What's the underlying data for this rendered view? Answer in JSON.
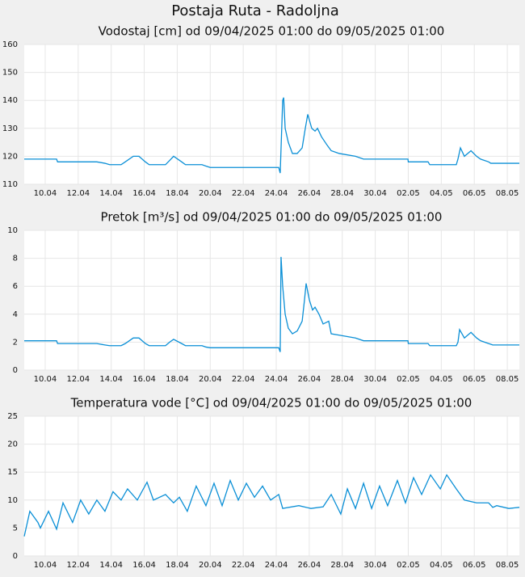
{
  "title": "Postaja Ruta - Radoljna",
  "chart_data": [
    {
      "type": "line",
      "title": "Vodostaj [cm] od 09/04/2025 01:00 do 09/05/2025 01:00",
      "color": "#0a8fd6",
      "grid": true,
      "xlim": [
        8.73,
        38.73
      ],
      "ylim": [
        110,
        160
      ],
      "yticks": [
        110,
        120,
        130,
        140,
        150,
        160
      ],
      "xticks": [
        {
          "value": 10,
          "label": "10.04"
        },
        {
          "value": 12,
          "label": "12.04"
        },
        {
          "value": 14,
          "label": "14.04"
        },
        {
          "value": 16,
          "label": "16.04"
        },
        {
          "value": 18,
          "label": "18.04"
        },
        {
          "value": 20,
          "label": "20.04"
        },
        {
          "value": 22,
          "label": "22.04"
        },
        {
          "value": 24,
          "label": "24.04"
        },
        {
          "value": 26,
          "label": "26.04"
        },
        {
          "value": 28,
          "label": "28.04"
        },
        {
          "value": 30,
          "label": "30.04"
        },
        {
          "value": 32,
          "label": "02.05"
        },
        {
          "value": 34,
          "label": "04.05"
        },
        {
          "value": 36,
          "label": "06.05"
        },
        {
          "value": 38,
          "label": "08.05"
        }
      ],
      "x": [
        8.73,
        10.69,
        10.75,
        13.13,
        13.62,
        13.9,
        14.6,
        14.85,
        15.34,
        15.68,
        16.07,
        16.3,
        17.29,
        17.54,
        17.78,
        18.27,
        18.5,
        19.5,
        19.74,
        20.0,
        24.15,
        24.24,
        24.39,
        24.45,
        24.54,
        24.73,
        24.98,
        25.27,
        25.57,
        25.76,
        25.91,
        26.15,
        26.35,
        26.5,
        26.74,
        27.08,
        27.33,
        27.82,
        28.8,
        29.29,
        31.98,
        32.0,
        33.2,
        33.3,
        34.91,
        35.01,
        35.16,
        35.4,
        35.8,
        36.14,
        36.38,
        36.87,
        37.0,
        38.73
      ],
      "values": [
        119,
        119,
        118,
        118,
        117.5,
        117,
        117,
        118,
        120,
        120,
        118,
        117,
        117,
        118.5,
        120,
        118,
        117,
        117,
        116.5,
        116,
        116,
        114,
        140,
        141,
        130,
        125,
        121,
        121,
        123,
        130,
        135,
        130,
        129,
        130,
        127,
        124,
        122,
        121,
        120,
        119,
        119,
        118,
        118,
        117,
        117,
        119,
        123,
        120,
        122,
        120,
        119,
        118,
        117.5,
        117.5
      ]
    },
    {
      "type": "line",
      "title": "Pretok [m³/s] od 09/04/2025 01:00 do 09/05/2025 01:00",
      "color": "#0a8fd6",
      "grid": true,
      "xlim": [
        8.73,
        38.73
      ],
      "ylim": [
        0,
        10
      ],
      "yticks": [
        0,
        2,
        4,
        6,
        8,
        10
      ],
      "xticks": [
        {
          "value": 10,
          "label": "10.04"
        },
        {
          "value": 12,
          "label": "12.04"
        },
        {
          "value": 14,
          "label": "14.04"
        },
        {
          "value": 16,
          "label": "16.04"
        },
        {
          "value": 18,
          "label": "18.04"
        },
        {
          "value": 20,
          "label": "20.04"
        },
        {
          "value": 22,
          "label": "22.04"
        },
        {
          "value": 24,
          "label": "24.04"
        },
        {
          "value": 26,
          "label": "26.04"
        },
        {
          "value": 28,
          "label": "28.04"
        },
        {
          "value": 30,
          "label": "30.04"
        },
        {
          "value": 32,
          "label": "02.05"
        },
        {
          "value": 34,
          "label": "04.05"
        },
        {
          "value": 36,
          "label": "06.05"
        },
        {
          "value": 38,
          "label": "08.05"
        }
      ],
      "x": [
        8.73,
        10.69,
        10.75,
        13.13,
        13.62,
        13.9,
        14.6,
        14.85,
        15.34,
        15.68,
        16.07,
        16.3,
        17.29,
        17.54,
        17.78,
        18.27,
        18.5,
        19.5,
        19.74,
        20.0,
        24.15,
        24.24,
        24.29,
        24.39,
        24.54,
        24.73,
        24.98,
        25.27,
        25.57,
        25.71,
        25.81,
        26.01,
        26.2,
        26.35,
        26.59,
        26.84,
        27.18,
        27.33,
        27.82,
        28.8,
        29.29,
        31.98,
        32.0,
        33.2,
        33.3,
        34.91,
        35.01,
        35.11,
        35.4,
        35.8,
        36.14,
        36.38,
        36.87,
        37.12,
        38.73
      ],
      "values": [
        2.1,
        2.1,
        1.9,
        1.9,
        1.8,
        1.75,
        1.75,
        1.9,
        2.3,
        2.3,
        1.9,
        1.75,
        1.75,
        2.0,
        2.2,
        1.9,
        1.75,
        1.75,
        1.65,
        1.6,
        1.6,
        1.3,
        8.1,
        6,
        4,
        3,
        2.6,
        2.8,
        3.5,
        5,
        6.2,
        5,
        4.3,
        4.5,
        4,
        3.3,
        3.5,
        2.6,
        2.5,
        2.3,
        2.1,
        2.1,
        1.9,
        1.9,
        1.75,
        1.75,
        2.0,
        2.9,
        2.3,
        2.7,
        2.3,
        2.1,
        1.9,
        1.8,
        1.8
      ]
    },
    {
      "type": "line",
      "title": "Temperatura vode [°C] od 09/04/2025 01:00 do 09/05/2025 01:00",
      "color": "#0a8fd6",
      "grid": true,
      "xlim": [
        8.73,
        38.73
      ],
      "ylim": [
        0,
        25
      ],
      "yticks": [
        0,
        5,
        10,
        15,
        20,
        25
      ],
      "xticks": [
        {
          "value": 10,
          "label": "10.04"
        },
        {
          "value": 12,
          "label": "12.04"
        },
        {
          "value": 14,
          "label": "14.04"
        },
        {
          "value": 16,
          "label": "16.04"
        },
        {
          "value": 18,
          "label": "18.04"
        },
        {
          "value": 20,
          "label": "20.04"
        },
        {
          "value": 22,
          "label": "22.04"
        },
        {
          "value": 24,
          "label": "24.04"
        },
        {
          "value": 26,
          "label": "26.04"
        },
        {
          "value": 28,
          "label": "28.04"
        },
        {
          "value": 30,
          "label": "30.04"
        },
        {
          "value": 32,
          "label": "02.05"
        },
        {
          "value": 34,
          "label": "04.05"
        },
        {
          "value": 36,
          "label": "06.05"
        },
        {
          "value": 38,
          "label": "08.05"
        }
      ],
      "x": [
        8.73,
        9.07,
        9.56,
        9.71,
        10.2,
        10.69,
        11.08,
        11.66,
        12.15,
        12.64,
        13.13,
        13.62,
        14.11,
        14.6,
        14.99,
        15.58,
        16.17,
        16.56,
        17.29,
        17.78,
        18.13,
        18.61,
        19.15,
        19.74,
        20.23,
        20.72,
        21.21,
        21.7,
        22.19,
        22.68,
        23.17,
        23.66,
        24.15,
        24.39,
        25.37,
        26.1,
        26.84,
        27.33,
        27.91,
        28.31,
        28.8,
        29.29,
        29.78,
        30.26,
        30.75,
        31.34,
        31.83,
        32.32,
        32.81,
        33.35,
        33.94,
        34.33,
        34.91,
        35.4,
        36.14,
        36.87,
        37.12,
        37.36,
        38.09,
        38.73
      ],
      "values": [
        3.5,
        8,
        6,
        5,
        8,
        4.8,
        9.5,
        6,
        10,
        7.5,
        10,
        8,
        11.5,
        10,
        12,
        10,
        13.2,
        10,
        11,
        9.5,
        10.5,
        8,
        12.5,
        9,
        13,
        9,
        13.5,
        10,
        13,
        10.5,
        12.5,
        10,
        11,
        8.5,
        9,
        8.5,
        8.8,
        11,
        7.5,
        12,
        8.5,
        13,
        8.5,
        12.5,
        9,
        13.5,
        9.5,
        14,
        11,
        14.5,
        12,
        14.5,
        12,
        10,
        9.5,
        9.5,
        8.7,
        9,
        8.5,
        8.7
      ]
    }
  ]
}
